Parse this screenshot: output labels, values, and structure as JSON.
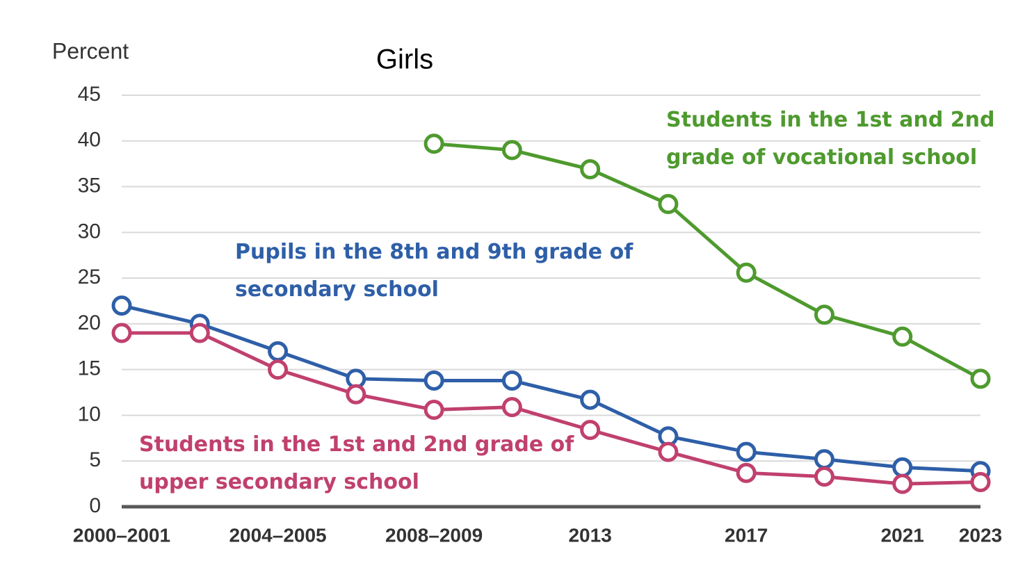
{
  "chart_data": {
    "type": "line",
    "title": "Girls",
    "y_label": "Percent",
    "categories": [
      "2000–2001",
      null,
      "2004–2005",
      null,
      "2008–2009",
      null,
      "2013",
      null,
      "2017",
      null,
      "2021",
      "2023"
    ],
    "series": [
      {
        "name": "Pupils in the 8th and 9th grade of secondary school",
        "color": "#2e5fa8",
        "values": [
          22,
          20,
          17,
          14,
          13.8,
          13.8,
          11.7,
          7.7,
          6,
          5.2,
          4.3,
          3.9
        ]
      },
      {
        "name": "Students in the 1st and 2nd grade of upper secondary school",
        "color": "#c0406e",
        "values": [
          19,
          19,
          15,
          12.3,
          10.6,
          10.9,
          8.4,
          6,
          3.7,
          3.3,
          2.5,
          2.7
        ]
      },
      {
        "name": "Students in the 1st and 2nd grade of vocational school",
        "color": "#4e9a2e",
        "values": [
          null,
          null,
          null,
          null,
          39.7,
          39,
          36.9,
          33.1,
          25.6,
          21,
          18.6,
          14
        ]
      }
    ],
    "ylim": [
      0,
      45
    ],
    "yticks": [
      0,
      5,
      10,
      15,
      20,
      25,
      30,
      35,
      40,
      45
    ],
    "grid": true
  }
}
